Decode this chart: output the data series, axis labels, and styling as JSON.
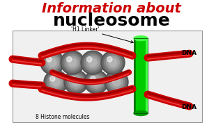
{
  "bg_color": "#ffffff",
  "title1": "Information about",
  "title1_color": "#cc0000",
  "title1_fontsize": 14,
  "title2": "nucleosome",
  "title2_color": "#000000",
  "title2_fontsize": 18,
  "diagram_bg": "#e8e8e8",
  "diagram_border": "#999999",
  "histone_color_outer": "#666666",
  "histone_color_inner": "#aaaaaa",
  "histone_highlight": "#cccccc",
  "dna_color": "#cc0000",
  "dna_dark": "#880000",
  "linker_color": "#00cc00",
  "linker_dark": "#008800",
  "linker_light": "#44ff44",
  "label_h1": "'H1 Linker'",
  "label_histone": "8 Histone molecules",
  "label_dna": "DNA",
  "label_color": "#000000",
  "label_fontsize": 5.5,
  "dna_label_fontsize": 6.5
}
